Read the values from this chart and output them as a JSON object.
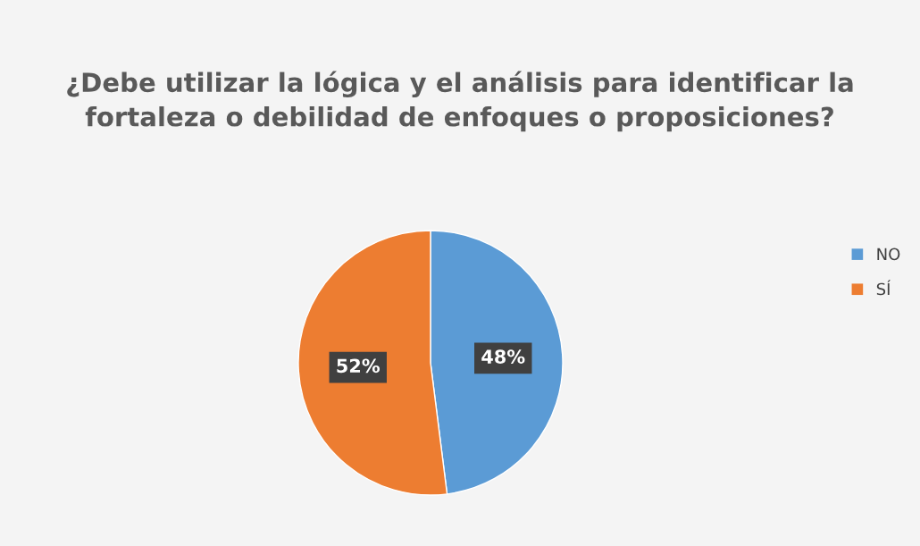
{
  "chart_data": {
    "type": "pie",
    "title": "¿Debe utilizar la lógica y el análisis para identificar la fortaleza o debilidad de enfoques o proposiciones?",
    "categories": [
      "NO",
      "SÍ"
    ],
    "values": [
      48,
      52
    ],
    "colors": [
      "#5b9bd5",
      "#ed7d31"
    ],
    "value_labels": [
      "48%",
      "52%"
    ],
    "legend": "right"
  }
}
